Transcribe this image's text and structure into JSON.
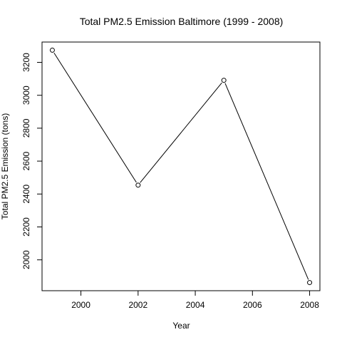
{
  "chart_data": {
    "type": "line",
    "title": "Total PM2.5 Emission Baltimore (1999 - 2008)",
    "xlabel": "Year",
    "ylabel": "Total PM2.5 Emission (tons)",
    "x": [
      1999,
      2002,
      2005,
      2008
    ],
    "series": [
      {
        "values": [
          3274,
          2454,
          3091,
          1862
        ]
      }
    ],
    "xlim": [
      1998.64,
      2008.36
    ],
    "ylim": [
      1812.5,
      3323.5
    ],
    "xticks": [
      2000,
      2002,
      2004,
      2006,
      2008
    ],
    "yticks": [
      2000,
      2200,
      2400,
      2600,
      2800,
      3000,
      3200
    ],
    "markers": "open-circle",
    "line_color": "#000000",
    "grid": false,
    "legend": "none"
  }
}
